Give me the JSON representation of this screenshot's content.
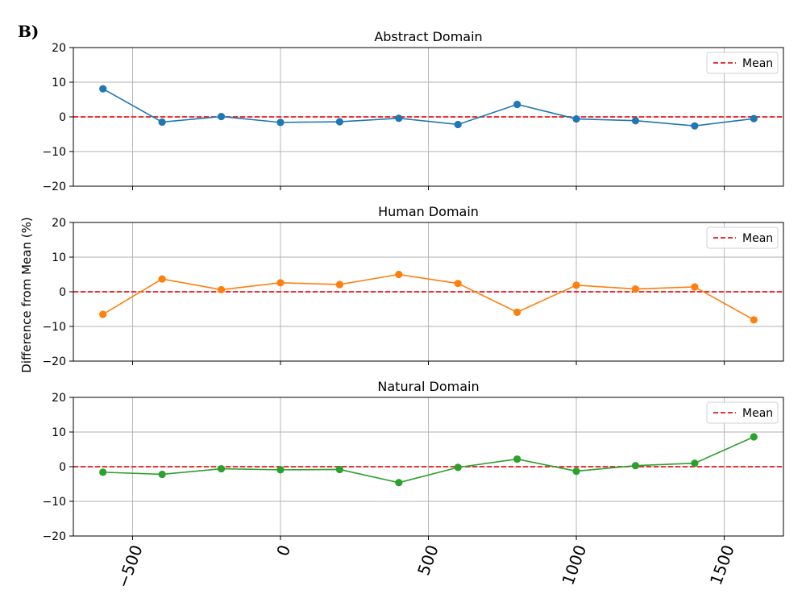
{
  "figure": {
    "panel_tag": "B)",
    "ylabel": "Difference from Mean (%)"
  },
  "chart_data": [
    {
      "type": "line",
      "title": "Abstract Domain",
      "x": [
        -600,
        -400,
        -200,
        0,
        200,
        400,
        600,
        800,
        1000,
        1200,
        1400,
        1600
      ],
      "series": [
        {
          "values": [
            8.1,
            -1.5,
            0.1,
            -1.6,
            -1.4,
            -0.4,
            -2.2,
            3.6,
            -0.6,
            -1.1,
            -2.6,
            -0.5
          ],
          "color": "#1f77b4"
        }
      ],
      "reference_line": {
        "name": "Mean",
        "y": 0,
        "color": "#e41a1c",
        "style": "dashed"
      },
      "legend": {
        "placement": "top-right",
        "entries": [
          "Mean"
        ]
      },
      "xlim": [
        -700,
        1700
      ],
      "ylim": [
        -20,
        20
      ],
      "xticks": [
        -500,
        0,
        500,
        1000,
        1500
      ],
      "xtick_labels": [
        "−500",
        "0",
        "500",
        "1000",
        "1500"
      ],
      "yticks": [
        -20,
        -10,
        0,
        10,
        20
      ],
      "ytick_labels": [
        "−20",
        "−10",
        "0",
        "10",
        "20"
      ],
      "grid": true
    },
    {
      "type": "line",
      "title": "Human Domain",
      "x": [
        -600,
        -400,
        -200,
        0,
        200,
        400,
        600,
        800,
        1000,
        1200,
        1400,
        1600
      ],
      "series": [
        {
          "values": [
            -6.5,
            3.7,
            0.6,
            2.6,
            2.1,
            5.0,
            2.4,
            -5.9,
            1.9,
            0.8,
            1.4,
            -8.1
          ],
          "color": "#ff7f0e"
        }
      ],
      "reference_line": {
        "name": "Mean",
        "y": 0,
        "color": "#e41a1c",
        "style": "dashed"
      },
      "legend": {
        "placement": "top-right",
        "entries": [
          "Mean"
        ]
      },
      "xlim": [
        -700,
        1700
      ],
      "ylim": [
        -20,
        20
      ],
      "xticks": [
        -500,
        0,
        500,
        1000,
        1500
      ],
      "xtick_labels": [
        "−500",
        "0",
        "500",
        "1000",
        "1500"
      ],
      "yticks": [
        -20,
        -10,
        0,
        10,
        20
      ],
      "ytick_labels": [
        "−20",
        "−10",
        "0",
        "10",
        "20"
      ],
      "grid": true
    },
    {
      "type": "line",
      "title": "Natural Domain",
      "x": [
        -600,
        -400,
        -200,
        0,
        200,
        400,
        600,
        800,
        1000,
        1200,
        1400,
        1600
      ],
      "series": [
        {
          "values": [
            -1.6,
            -2.2,
            -0.6,
            -0.9,
            -0.8,
            -4.6,
            -0.2,
            2.2,
            -1.3,
            0.3,
            1.0,
            8.6
          ],
          "color": "#2ca02c"
        }
      ],
      "reference_line": {
        "name": "Mean",
        "y": 0,
        "color": "#e41a1c",
        "style": "dashed"
      },
      "legend": {
        "placement": "top-right",
        "entries": [
          "Mean"
        ]
      },
      "xlim": [
        -700,
        1700
      ],
      "ylim": [
        -20,
        20
      ],
      "xticks": [
        -500,
        0,
        500,
        1000,
        1500
      ],
      "xtick_labels": [
        "−500",
        "0",
        "500",
        "1000",
        "1500"
      ],
      "yticks": [
        -20,
        -10,
        0,
        10,
        20
      ],
      "ytick_labels": [
        "−20",
        "−10",
        "0",
        "10",
        "20"
      ],
      "grid": true
    }
  ]
}
